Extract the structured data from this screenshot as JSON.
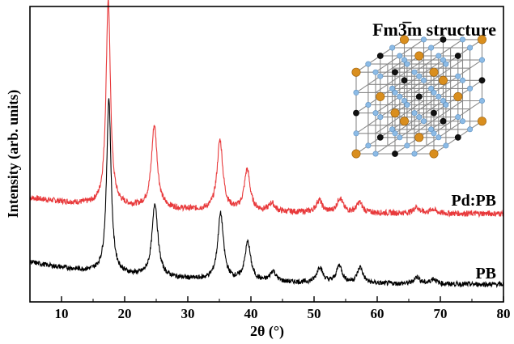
{
  "chart_data": {
    "type": "line",
    "xlabel": "2θ (°)",
    "ylabel": "Intensity (arb. units)",
    "xlim": [
      5,
      80
    ],
    "xticks": [
      10,
      20,
      30,
      40,
      50,
      60,
      70,
      80
    ],
    "y_ticks_shown": false,
    "grid": false,
    "legend": "labels placed next to traces (right side)",
    "annotation": {
      "text": "Fm3̅m structure",
      "placement": "top-right",
      "inset": "cubic lattice ball-and-stick illustration"
    },
    "series": [
      {
        "name": "Pd:PB",
        "color": "#e8393b",
        "baseline_offset": 1.0,
        "background_level": 0.12,
        "peaks": [
          {
            "x": 17.4,
            "height": 1.0
          },
          {
            "x": 24.7,
            "height": 0.4
          },
          {
            "x": 35.1,
            "height": 0.34
          },
          {
            "x": 39.4,
            "height": 0.2
          },
          {
            "x": 43.3,
            "height": 0.04
          },
          {
            "x": 50.8,
            "height": 0.06
          },
          {
            "x": 54.1,
            "height": 0.07
          },
          {
            "x": 57.2,
            "height": 0.05
          },
          {
            "x": 66.2,
            "height": 0.03
          },
          {
            "x": 68.8,
            "height": 0.02
          }
        ]
      },
      {
        "name": "PB",
        "color": "#000000",
        "baseline_offset": 0.0,
        "background_level": 0.2,
        "peaks": [
          {
            "x": 17.5,
            "height": 1.0
          },
          {
            "x": 24.8,
            "height": 0.42
          },
          {
            "x": 35.2,
            "height": 0.38
          },
          {
            "x": 39.5,
            "height": 0.22
          },
          {
            "x": 43.5,
            "height": 0.06
          },
          {
            "x": 50.9,
            "height": 0.09
          },
          {
            "x": 54.0,
            "height": 0.1
          },
          {
            "x": 57.3,
            "height": 0.09
          },
          {
            "x": 66.3,
            "height": 0.04
          },
          {
            "x": 68.9,
            "height": 0.03
          }
        ]
      }
    ]
  },
  "colors": {
    "pd_pb": "#e8393b",
    "pb": "#000000",
    "atom_gold": "#d98e1e",
    "atom_blue": "#8cbbe6",
    "atom_black": "#111111",
    "bond": "#8a8a8a"
  }
}
